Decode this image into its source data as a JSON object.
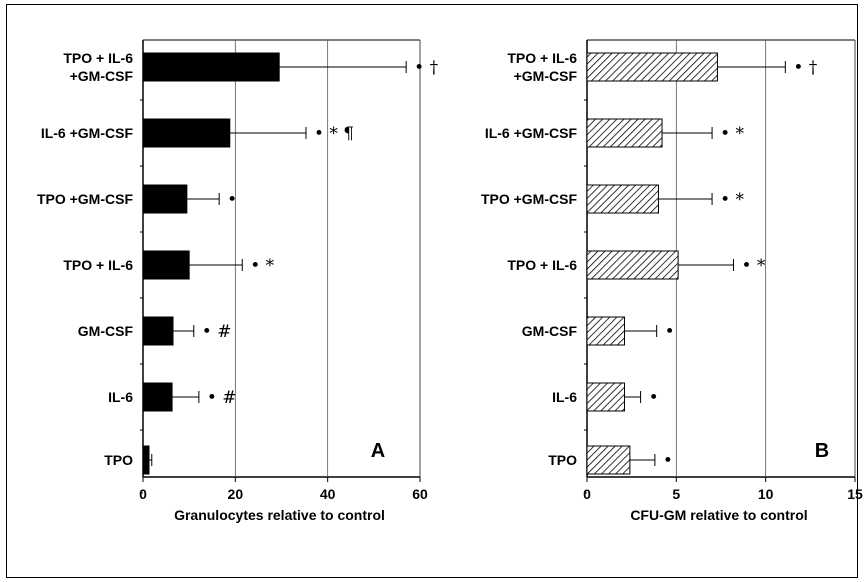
{
  "colors": {
    "bar_fill_a": "#000000",
    "bar_hatch_b": "#000000",
    "gridline": "#555555"
  },
  "chart_data": [
    {
      "type": "bar",
      "orientation": "horizontal",
      "panel_label": "A",
      "xlabel": "Granulocytes relative to control",
      "xlim": [
        0,
        60
      ],
      "xticks": [
        "0",
        "20",
        "40",
        "60"
      ],
      "grid": "vertical at 20, 40, 60",
      "bar_style": "solid black",
      "categories": [
        "TPO + IL-6\n+GM-CSF",
        "IL-6 +GM-CSF",
        "TPO +GM-CSF",
        "TPO + IL-6",
        "GM-CSF",
        "IL-6",
        "TPO"
      ],
      "values": [
        29.5,
        18.8,
        9.5,
        10.0,
        6.5,
        6.3,
        1.3
      ],
      "errors": [
        27.5,
        16.5,
        7.0,
        11.5,
        4.5,
        5.8,
        0.6
      ],
      "annotations": [
        "• †",
        "• * ¶",
        "•",
        "• *",
        "• #",
        "• #",
        ""
      ]
    },
    {
      "type": "bar",
      "orientation": "horizontal",
      "panel_label": "B",
      "xlabel": "CFU-GM relative to control",
      "xlim": [
        0,
        15
      ],
      "xticks": [
        "0",
        "5",
        "10",
        "15"
      ],
      "grid": "vertical at 5, 10",
      "bar_style": "diagonal hatch",
      "categories": [
        "TPO + IL-6\n+GM-CSF",
        "IL-6 +GM-CSF",
        "TPO +GM-CSF",
        "TPO + IL-6",
        "GM-CSF",
        "IL-6",
        "TPO"
      ],
      "values": [
        7.3,
        4.2,
        4.0,
        5.1,
        2.1,
        2.1,
        2.4
      ],
      "errors": [
        3.8,
        2.8,
        3.0,
        3.1,
        1.8,
        0.9,
        1.4
      ],
      "annotations": [
        "• †",
        "• *",
        "• *",
        "• *",
        "•",
        "•",
        "•"
      ]
    }
  ]
}
